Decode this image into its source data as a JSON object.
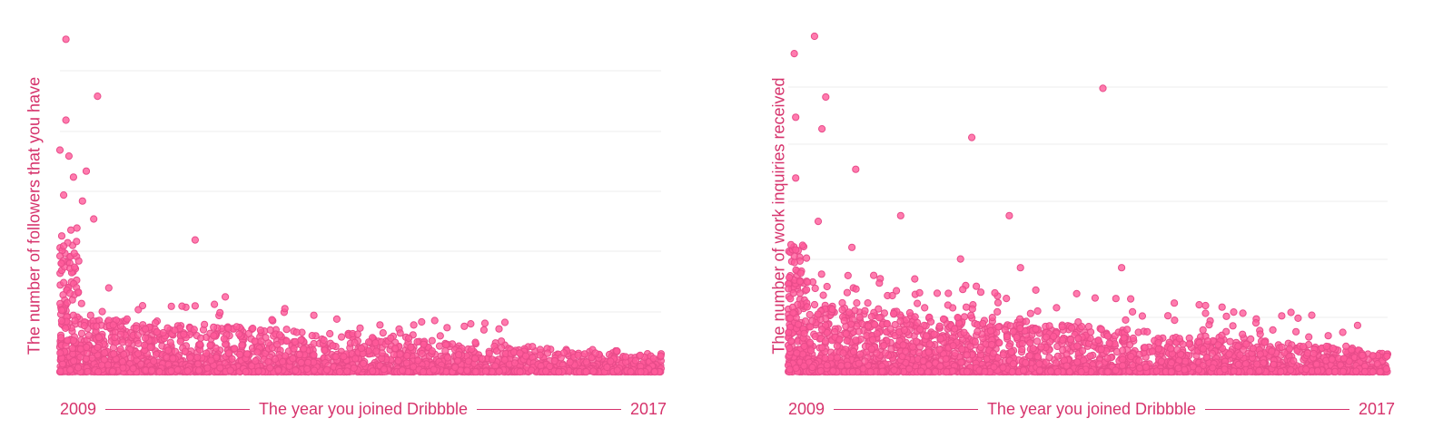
{
  "colors": {
    "accent": "#d6336c",
    "point_fill": "#ff5a9a",
    "point_stroke": "#e84c8a",
    "grid": "#ececec"
  },
  "charts": [
    {
      "ylabel": "The number of followers that you have",
      "xlabel": "The year you joined Dribbble",
      "xstart": "2009",
      "xend": "2017"
    },
    {
      "ylabel": "The number of work inquiries received",
      "xlabel": "The year you joined Dribbble",
      "xstart": "2009",
      "xend": "2017"
    }
  ],
  "chart_data": [
    {
      "type": "scatter",
      "title": "",
      "xlabel": "The year you joined Dribbble",
      "ylabel": "The number of followers that you have",
      "xlim": [
        2009,
        2017
      ],
      "ylim": [
        0,
        5.6
      ],
      "grid": true,
      "y_tick_labels": "none",
      "highlighted_points": [
        {
          "x": 2009.08,
          "y": 5.55
        },
        {
          "x": 2009.5,
          "y": 4.6
        },
        {
          "x": 2009.08,
          "y": 4.2
        },
        {
          "x": 2009.0,
          "y": 3.7
        },
        {
          "x": 2009.12,
          "y": 3.6
        },
        {
          "x": 2009.35,
          "y": 3.35
        },
        {
          "x": 2009.18,
          "y": 3.25
        },
        {
          "x": 2009.05,
          "y": 2.95
        },
        {
          "x": 2009.3,
          "y": 2.85
        },
        {
          "x": 2009.45,
          "y": 2.55
        },
        {
          "x": 2010.8,
          "y": 2.2
        },
        {
          "x": 2009.05,
          "y": 2.1
        },
        {
          "x": 2009.25,
          "y": 1.85
        },
        {
          "x": 2009.65,
          "y": 1.4
        },
        {
          "x": 2010.8,
          "y": 1.1
        },
        {
          "x": 2011.2,
          "y": 1.25
        },
        {
          "x": 2013.3,
          "y": 0.65
        }
      ],
      "density": "very dense cluster near y=0 across all years, decreasing spread with later join year"
    },
    {
      "type": "scatter",
      "title": "",
      "xlabel": "The year you joined Dribbble",
      "ylabel": "The number of work inquiries received",
      "xlim": [
        2009,
        2017
      ],
      "ylim": [
        0,
        5.8
      ],
      "grid": true,
      "y_tick_labels": "none",
      "highlighted_points": [
        {
          "x": 2009.35,
          "y": 5.8
        },
        {
          "x": 2009.08,
          "y": 5.5
        },
        {
          "x": 2013.2,
          "y": 4.9
        },
        {
          "x": 2009.5,
          "y": 4.75
        },
        {
          "x": 2009.1,
          "y": 4.4
        },
        {
          "x": 2009.45,
          "y": 4.2
        },
        {
          "x": 2011.45,
          "y": 4.05
        },
        {
          "x": 2009.9,
          "y": 3.5
        },
        {
          "x": 2009.1,
          "y": 3.35
        },
        {
          "x": 2009.4,
          "y": 2.6
        },
        {
          "x": 2010.5,
          "y": 2.7
        },
        {
          "x": 2011.95,
          "y": 2.7
        },
        {
          "x": 2009.85,
          "y": 2.15
        },
        {
          "x": 2013.45,
          "y": 1.8
        },
        {
          "x": 2011.3,
          "y": 1.95
        },
        {
          "x": 2012.1,
          "y": 1.8
        },
        {
          "x": 2012.85,
          "y": 1.35
        },
        {
          "x": 2015.3,
          "y": 0.65
        }
      ],
      "density": "very dense cluster near y=0 across all years, slightly wider spread than followers chart"
    }
  ]
}
